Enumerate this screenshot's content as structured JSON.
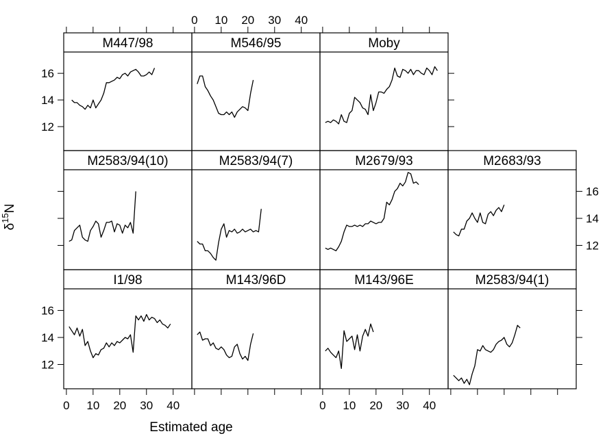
{
  "chart_data": {
    "type": "line",
    "xlabel": "Estimated age",
    "ylabel": "δ15N",
    "ylabel_main": "δ",
    "ylabel_sup": "15",
    "ylabel_rest": "N",
    "xlim": [
      -1,
      47
    ],
    "ylim": [
      10.2,
      17.6
    ],
    "x_ticks": [
      0,
      10,
      20,
      30,
      40
    ],
    "y_ticks": [
      12,
      14,
      16
    ],
    "layout": "4 columns x 3 rows, top row has 3 panels",
    "panels": [
      {
        "name": "M447/98",
        "x": [
          2,
          3,
          4,
          5,
          6,
          7,
          8,
          9,
          10,
          11,
          12,
          13,
          14,
          15,
          16,
          17,
          18,
          19,
          20,
          21,
          22,
          23,
          24,
          25,
          26,
          27,
          28,
          29,
          30,
          31,
          32,
          33
        ],
        "y": [
          14.0,
          13.8,
          13.8,
          13.6,
          13.5,
          13.3,
          13.6,
          13.4,
          14.0,
          13.4,
          13.7,
          14.0,
          14.5,
          15.3,
          15.3,
          15.4,
          15.5,
          15.7,
          15.6,
          15.9,
          16.0,
          15.8,
          16.1,
          16.2,
          16.3,
          16.1,
          15.8,
          15.8,
          15.9,
          16.1,
          15.9,
          16.4
        ]
      },
      {
        "name": "M546/95",
        "x": [
          1,
          2,
          3,
          4,
          5,
          6,
          7,
          8,
          9,
          10,
          11,
          12,
          13,
          14,
          15,
          16,
          17,
          18,
          19,
          20,
          21,
          22
        ],
        "y": [
          15.2,
          15.8,
          15.8,
          15.0,
          14.7,
          14.3,
          14.0,
          13.5,
          13.0,
          12.9,
          12.9,
          13.1,
          12.9,
          13.1,
          12.7,
          13.1,
          13.3,
          13.5,
          13.4,
          13.2,
          14.5,
          15.5
        ]
      },
      {
        "name": "Moby",
        "x": [
          1,
          2,
          3,
          4,
          5,
          6,
          7,
          8,
          9,
          10,
          11,
          12,
          13,
          14,
          15,
          16,
          17,
          18,
          19,
          20,
          21,
          22,
          23,
          24,
          25,
          26,
          27,
          28,
          29,
          30,
          31,
          32,
          33,
          34,
          35,
          36,
          37,
          38,
          39,
          40,
          41,
          42,
          43
        ],
        "y": [
          12.3,
          12.4,
          12.3,
          12.5,
          12.4,
          12.2,
          12.9,
          12.4,
          12.3,
          13.0,
          13.2,
          14.2,
          14.0,
          13.8,
          13.4,
          13.3,
          12.9,
          14.4,
          13.2,
          13.8,
          14.6,
          14.6,
          14.5,
          14.8,
          15.0,
          15.5,
          16.4,
          15.8,
          15.7,
          16.3,
          16.2,
          16.0,
          16.3,
          15.9,
          16.2,
          16.2,
          16.0,
          15.9,
          16.4,
          16.2,
          15.9,
          16.5,
          16.2
        ]
      },
      {
        "name": "M2583/94(10)",
        "x": [
          1,
          2,
          3,
          4,
          5,
          6,
          7,
          8,
          9,
          10,
          11,
          12,
          13,
          14,
          15,
          16,
          17,
          18,
          19,
          20,
          21,
          22,
          23,
          24,
          25,
          26
        ],
        "y": [
          12.3,
          12.4,
          13.1,
          13.3,
          13.5,
          12.6,
          12.4,
          12.3,
          13.1,
          13.4,
          13.8,
          13.6,
          12.6,
          13.1,
          13.7,
          13.7,
          13.8,
          13.0,
          13.6,
          13.5,
          12.9,
          13.5,
          13.3,
          13.7,
          12.9,
          16.0
        ]
      },
      {
        "name": "M2583/94(7)",
        "x": [
          1,
          2,
          3,
          4,
          5,
          6,
          7,
          8,
          9,
          10,
          11,
          12,
          13,
          14,
          15,
          16,
          17,
          18,
          19,
          20,
          21,
          22,
          23,
          24,
          25
        ],
        "y": [
          12.3,
          12.1,
          12.1,
          11.6,
          11.6,
          11.4,
          11.1,
          10.9,
          12.2,
          13.2,
          13.6,
          12.6,
          13.1,
          13.0,
          13.2,
          12.9,
          13.0,
          13.2,
          13.0,
          13.1,
          13.2,
          13.0,
          13.1,
          13.0,
          14.7
        ]
      },
      {
        "name": "M2679/93",
        "x": [
          1,
          2,
          3,
          4,
          5,
          6,
          7,
          8,
          9,
          10,
          11,
          12,
          13,
          14,
          15,
          16,
          17,
          18,
          19,
          20,
          21,
          22,
          23,
          24,
          25,
          26,
          27,
          28,
          29,
          30,
          31,
          32,
          33,
          34,
          35,
          36
        ],
        "y": [
          11.8,
          11.7,
          11.8,
          11.7,
          11.6,
          11.9,
          12.3,
          13.0,
          13.5,
          13.4,
          13.4,
          13.5,
          13.4,
          13.5,
          13.4,
          13.6,
          13.6,
          13.8,
          13.7,
          13.6,
          13.7,
          13.7,
          14.0,
          15.2,
          15.0,
          15.4,
          16.0,
          16.2,
          16.6,
          16.4,
          16.7,
          17.4,
          17.3,
          16.6,
          16.7,
          16.5
        ]
      },
      {
        "name": "M2683/93",
        "x": [
          1,
          2,
          3,
          4,
          5,
          6,
          7,
          8,
          9,
          10,
          11,
          12,
          13,
          14,
          15,
          16,
          17,
          18,
          19,
          20
        ],
        "y": [
          13.0,
          12.8,
          12.7,
          13.2,
          13.2,
          13.8,
          14.0,
          14.4,
          14.0,
          13.7,
          14.4,
          13.7,
          13.6,
          14.3,
          14.5,
          14.2,
          14.6,
          14.8,
          14.5,
          15.0
        ]
      },
      {
        "name": "I1/98",
        "x": [
          1,
          2,
          3,
          4,
          5,
          6,
          7,
          8,
          9,
          10,
          11,
          12,
          13,
          14,
          15,
          16,
          17,
          18,
          19,
          20,
          21,
          22,
          23,
          24,
          25,
          26,
          27,
          28,
          29,
          30,
          31,
          32,
          33,
          34,
          35,
          36,
          37,
          38,
          39
        ],
        "y": [
          14.8,
          14.5,
          14.2,
          14.7,
          14.1,
          14.6,
          13.4,
          13.7,
          13.0,
          12.5,
          12.8,
          12.7,
          13.1,
          13.2,
          13.6,
          13.3,
          13.6,
          13.4,
          13.7,
          13.6,
          13.8,
          14.0,
          13.9,
          14.2,
          12.9,
          15.6,
          15.3,
          15.6,
          15.2,
          15.7,
          15.3,
          15.5,
          15.4,
          15.1,
          15.3,
          15.0,
          14.9,
          14.7,
          15.0
        ]
      },
      {
        "name": "M143/96D",
        "x": [
          1,
          2,
          3,
          4,
          5,
          6,
          7,
          8,
          9,
          10,
          11,
          12,
          13,
          14,
          15,
          16,
          17,
          18,
          19,
          20,
          21,
          22
        ],
        "y": [
          14.2,
          14.4,
          13.8,
          13.9,
          13.9,
          13.4,
          13.6,
          13.2,
          13.1,
          13.3,
          13.1,
          12.7,
          12.5,
          12.6,
          13.3,
          13.5,
          12.8,
          12.4,
          12.6,
          12.3,
          13.5,
          14.3
        ]
      },
      {
        "name": "M143/96E",
        "x": [
          1,
          2,
          3,
          4,
          5,
          6,
          7,
          8,
          9,
          10,
          11,
          12,
          13,
          14,
          15,
          16,
          17,
          18,
          19
        ],
        "y": [
          13.0,
          13.2,
          12.9,
          12.7,
          12.5,
          13.0,
          11.7,
          14.5,
          13.7,
          13.9,
          14.1,
          13.1,
          14.2,
          13.0,
          14.1,
          14.6,
          14.1,
          15.0,
          14.4
        ]
      },
      {
        "name": "M2583/94(1)",
        "x": [
          1,
          2,
          3,
          4,
          5,
          6,
          7,
          8,
          9,
          10,
          11,
          12,
          13,
          14,
          15,
          16,
          17,
          18,
          19,
          20,
          21,
          22,
          23,
          24,
          25,
          26
        ],
        "y": [
          11.2,
          11.0,
          10.8,
          11.0,
          10.6,
          10.9,
          10.5,
          11.3,
          11.9,
          13.1,
          13.0,
          13.4,
          13.1,
          13.0,
          12.9,
          13.1,
          13.5,
          13.7,
          13.8,
          14.0,
          13.5,
          13.3,
          13.6,
          14.2,
          14.9,
          14.7
        ]
      }
    ]
  }
}
